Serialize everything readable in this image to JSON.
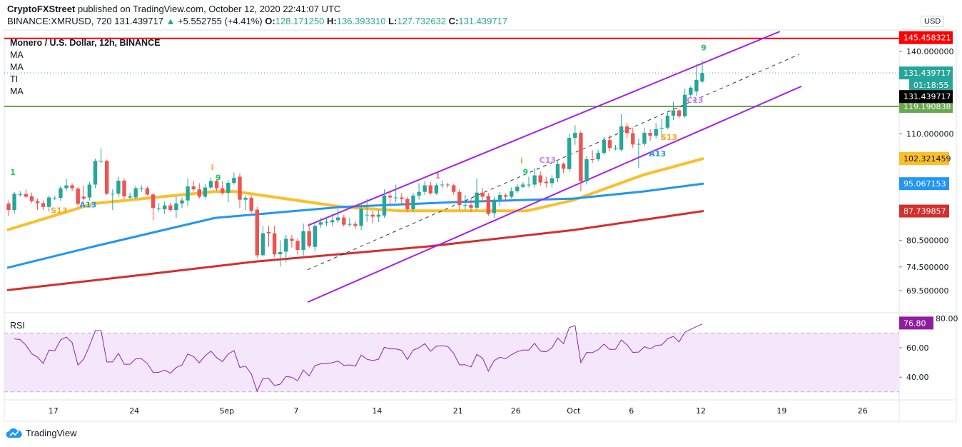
{
  "header": {
    "publisher": "CryptoFXStreet",
    "published_text": " published on TradingView.com, October 12, 2020 22:41:07 UTC",
    "symbol": "BINANCE:XMRUSD, 720",
    "last": "131.439717",
    "change": "+5.552755 (+4.41%)",
    "o_label": "O:",
    "o": "128.171250",
    "h_label": "H:",
    "h": "136.393310",
    "l_label": "L:",
    "l": "127.732632",
    "c_label": "C:",
    "c": "131.439717"
  },
  "legend": {
    "title": "Monero / U.S. Dollar, 12h, BINANCE",
    "indicators": [
      "MA",
      "MA",
      "TI",
      "MA"
    ],
    "rsi": "RSI"
  },
  "currency": "USD",
  "footer": {
    "brand": "TradingView"
  },
  "colors": {
    "up": "#26a69a",
    "down": "#ef5350",
    "ma_yellow": "#fbbf2c",
    "ma_blue": "#2196f3",
    "ma_red": "#d32f2f",
    "channel": "#a51ff0",
    "support": "#6aa84f",
    "resistance": "#ff0000",
    "rsi": "#8e24aa"
  },
  "chart_data": {
    "type": "candlestick",
    "interval": "12h",
    "scale": "log",
    "start": "2020-08-13T00:00",
    "candles_ohlc": [
      [
        89.7,
        90.5,
        86.5,
        88.0
      ],
      [
        88.0,
        92.8,
        87.0,
        92.3
      ],
      [
        92.2,
        93.0,
        91.5,
        92.2
      ],
      [
        92.2,
        93.5,
        91.2,
        91.5
      ],
      [
        91.6,
        92.6,
        89.8,
        90.3
      ],
      [
        90.3,
        91.0,
        88.0,
        89.8
      ],
      [
        89.8,
        90.5,
        88.0,
        88.8
      ],
      [
        88.8,
        91.8,
        87.6,
        91.3
      ],
      [
        91.2,
        91.8,
        90.6,
        91.2
      ],
      [
        91.2,
        94.5,
        90.4,
        93.8
      ],
      [
        93.8,
        96.4,
        93.0,
        94.6
      ],
      [
        94.6,
        95.2,
        93.0,
        93.8
      ],
      [
        93.7,
        94.2,
        89.0,
        89.6
      ],
      [
        91.5,
        94.5,
        90.5,
        91.0
      ],
      [
        91.3,
        95.5,
        90.5,
        94.8
      ],
      [
        94.8,
        102.3,
        93.8,
        101.6
      ],
      [
        101.6,
        105.5,
        101.0,
        101.6
      ],
      [
        101.6,
        102.0,
        92.0,
        92.3
      ],
      [
        92.3,
        93.5,
        88.0,
        92.3
      ],
      [
        92.3,
        97.0,
        91.5,
        95.9
      ],
      [
        95.9,
        96.5,
        91.0,
        91.6
      ],
      [
        91.3,
        92.6,
        90.8,
        91.6
      ],
      [
        91.3,
        94.5,
        90.8,
        93.8
      ],
      [
        93.8,
        94.6,
        92.8,
        93.8
      ],
      [
        93.8,
        94.3,
        91.8,
        92.1
      ],
      [
        92.1,
        92.5,
        85.4,
        88.5
      ],
      [
        88.5,
        89.8,
        87.6,
        88.5
      ],
      [
        88.2,
        90.2,
        87.0,
        89.2
      ],
      [
        89.2,
        89.9,
        87.6,
        88.0
      ],
      [
        88.0,
        91.5,
        86.0,
        89.7
      ],
      [
        89.7,
        91.3,
        88.6,
        90.5
      ],
      [
        90.5,
        96.5,
        89.0,
        94.3
      ],
      [
        94.3,
        95.8,
        93.0,
        93.5
      ],
      [
        93.5,
        95.2,
        91.0,
        91.5
      ],
      [
        91.5,
        95.0,
        91.0,
        94.0
      ],
      [
        94.0,
        96.8,
        93.5,
        95.8
      ],
      [
        95.8,
        96.3,
        93.0,
        93.8
      ],
      [
        93.8,
        95.7,
        92.0,
        92.5
      ],
      [
        92.5,
        96.0,
        90.0,
        95.3
      ],
      [
        95.3,
        98.2,
        94.8,
        96.7
      ],
      [
        97.0,
        98.0,
        88.5,
        90.7
      ],
      [
        90.7,
        91.8,
        88.0,
        91.2
      ],
      [
        91.2,
        91.8,
        87.3,
        87.8
      ],
      [
        88.1,
        88.8,
        76.5,
        77.1
      ],
      [
        77.1,
        84.0,
        76.8,
        82.2
      ],
      [
        82.5,
        84.0,
        79.0,
        82.2
      ],
      [
        82.2,
        84.0,
        76.7,
        77.3
      ],
      [
        77.3,
        80.5,
        74.6,
        77.8
      ],
      [
        77.9,
        81.8,
        75.5,
        80.9
      ],
      [
        80.9,
        81.8,
        78.8,
        80.4
      ],
      [
        80.4,
        81.0,
        77.2,
        78.3
      ],
      [
        78.3,
        84.6,
        77.0,
        82.7
      ],
      [
        82.7,
        84.6,
        78.8,
        79.2
      ],
      [
        79.0,
        85.0,
        78.0,
        84.0
      ],
      [
        84.3,
        86.0,
        83.6,
        84.9
      ],
      [
        84.8,
        86.3,
        84.0,
        85.0
      ],
      [
        84.9,
        87.0,
        83.9,
        85.4
      ],
      [
        85.4,
        88.2,
        84.8,
        86.1
      ],
      [
        86.1,
        86.8,
        83.8,
        84.3
      ],
      [
        84.3,
        86.0,
        83.7,
        84.5
      ],
      [
        84.5,
        85.2,
        83.3,
        84.0
      ],
      [
        84.0,
        89.5,
        83.0,
        88.3
      ],
      [
        86.8,
        91.0,
        85.0,
        86.8
      ],
      [
        86.8,
        87.8,
        84.6,
        86.3
      ],
      [
        86.3,
        88.0,
        85.0,
        86.8
      ],
      [
        86.6,
        93.5,
        86.0,
        91.8
      ],
      [
        91.8,
        93.0,
        89.0,
        91.3
      ],
      [
        91.3,
        94.8,
        90.0,
        91.3
      ],
      [
        91.3,
        92.5,
        89.5,
        90.9
      ],
      [
        90.9,
        91.5,
        87.5,
        88.2
      ],
      [
        88.2,
        92.5,
        87.6,
        91.8
      ],
      [
        91.8,
        95.2,
        90.8,
        92.8
      ],
      [
        92.8,
        95.8,
        92.0,
        94.6
      ],
      [
        94.6,
        95.5,
        92.0,
        92.4
      ],
      [
        92.4,
        95.2,
        92.0,
        94.6
      ],
      [
        94.6,
        96.0,
        93.8,
        94.8
      ],
      [
        94.8,
        95.3,
        94.0,
        94.6
      ],
      [
        94.6,
        95.0,
        92.0,
        92.8
      ],
      [
        92.8,
        93.5,
        88.0,
        89.3
      ],
      [
        89.3,
        92.0,
        88.0,
        89.3
      ],
      [
        89.3,
        91.0,
        87.5,
        88.6
      ],
      [
        88.6,
        96.5,
        88.0,
        92.6
      ],
      [
        92.6,
        93.8,
        90.0,
        91.5
      ],
      [
        91.7,
        92.5,
        86.5,
        87.0
      ],
      [
        87.2,
        91.5,
        86.0,
        90.7
      ],
      [
        90.7,
        92.8,
        89.0,
        92.0
      ],
      [
        91.9,
        92.4,
        90.2,
        91.5
      ],
      [
        91.5,
        94.0,
        91.0,
        93.0
      ],
      [
        93.0,
        95.0,
        92.5,
        94.2
      ],
      [
        94.2,
        95.5,
        93.8,
        94.8
      ],
      [
        94.8,
        97.0,
        94.0,
        94.8
      ],
      [
        94.8,
        99.5,
        94.0,
        97.4
      ],
      [
        97.4,
        98.5,
        94.5,
        95.4
      ],
      [
        95.6,
        97.0,
        94.0,
        95.2
      ],
      [
        95.2,
        97.5,
        94.0,
        96.6
      ],
      [
        96.6,
        101.5,
        95.5,
        100.7
      ],
      [
        100.7,
        101.2,
        98.0,
        99.3
      ],
      [
        99.2,
        110.0,
        98.5,
        108.7
      ],
      [
        108.7,
        112.8,
        106.5,
        110.3
      ],
      [
        110.3,
        111.0,
        93.0,
        95.7
      ],
      [
        95.7,
        103.0,
        94.8,
        102.1
      ],
      [
        102.1,
        104.8,
        101.0,
        102.0
      ],
      [
        102.1,
        105.0,
        101.5,
        104.0
      ],
      [
        104.0,
        109.0,
        103.5,
        108.0
      ],
      [
        108.0,
        109.5,
        104.5,
        105.5
      ],
      [
        105.6,
        106.5,
        104.8,
        105.6
      ],
      [
        105.0,
        116.5,
        104.5,
        112.4
      ],
      [
        112.4,
        113.5,
        108.5,
        110.2
      ],
      [
        110.2,
        112.0,
        105.5,
        106.6
      ],
      [
        106.8,
        108.5,
        99.5,
        106.8
      ],
      [
        106.8,
        112.0,
        106.0,
        110.3
      ],
      [
        110.3,
        111.5,
        107.8,
        109.4
      ],
      [
        109.4,
        113.5,
        108.5,
        111.5
      ],
      [
        111.9,
        115.0,
        108.0,
        111.9
      ],
      [
        112.0,
        117.0,
        111.5,
        116.0
      ],
      [
        116.0,
        120.8,
        114.5,
        117.8
      ],
      [
        117.8,
        118.3,
        115.0,
        115.8
      ],
      [
        115.8,
        125.5,
        115.3,
        123.3
      ],
      [
        123.3,
        126.5,
        122.5,
        125.9
      ],
      [
        124.5,
        134.8,
        123.0,
        128.8
      ],
      [
        128.17125,
        136.39331,
        127.732632,
        131.439717
      ]
    ],
    "moving_averages": [
      {
        "color": "#fbbf2c",
        "points": [
          [
            "2020-08-13",
            83.0
          ],
          [
            "2020-08-20T12:00",
            89.7
          ],
          [
            "2020-08-31",
            92.9
          ],
          [
            "2020-09-01T18:00",
            92.9
          ],
          [
            "2020-09-11",
            88.8
          ],
          [
            "2020-09-16",
            87.8
          ],
          [
            "2020-09-27",
            87.8
          ],
          [
            "2020-10-01",
            90.6
          ],
          [
            "2020-10-07",
            97.5
          ],
          [
            "2020-10-12T06:00",
            102.321459
          ]
        ]
      },
      {
        "color": "#2196f3",
        "points": [
          [
            "2020-08-13",
            74.3
          ],
          [
            "2020-08-20T12:00",
            79.1
          ],
          [
            "2020-08-31",
            86.0
          ],
          [
            "2020-09-11",
            88.8
          ],
          [
            "2020-09-21",
            90.1
          ],
          [
            "2020-10-01",
            91.0
          ],
          [
            "2020-10-07",
            92.9
          ],
          [
            "2020-10-12T06:00",
            95.067153
          ]
        ]
      },
      {
        "color": "#d32f2f",
        "points": [
          [
            "2020-08-13",
            69.6
          ],
          [
            "2020-08-24T17:00",
            72.8
          ],
          [
            "2020-09-03T14:00",
            75.7
          ],
          [
            "2020-09-18T10:00",
            79.1
          ],
          [
            "2020-10-01",
            83.0
          ],
          [
            "2020-10-12T06:00",
            87.739857
          ]
        ]
      }
    ],
    "trendlines": [
      {
        "kind": "channel-upper",
        "color": "#a51ff0",
        "from": [
          "2020-09-08",
          84.1
        ],
        "to": [
          "2020-10-18T20:00",
          148.4
        ]
      },
      {
        "kind": "channel-lower",
        "color": "#a51ff0",
        "from": [
          "2020-09-08",
          67.2
        ],
        "to": [
          "2020-10-20T17:00",
          126.4
        ]
      },
      {
        "kind": "channel-mid-dashed",
        "color": "#333333",
        "from": [
          "2020-09-08",
          73.9
        ],
        "to": [
          "2020-10-20T12:00",
          138.8
        ]
      }
    ],
    "horizontal_lines": [
      {
        "price": 145.458321,
        "label": "145.458321",
        "color": "#ff0000"
      },
      {
        "price": 119.190838,
        "label": "119.190838",
        "color": "#6aa84f"
      }
    ],
    "price_labels": [
      {
        "price": 131.439717,
        "label": "131.439717",
        "bg": "#26a69a",
        "fg": "#ffffff"
      },
      {
        "price": 102.321459,
        "label": "102.321459",
        "bg": "#fbbf2c",
        "fg": "#131722"
      },
      {
        "price": 95.067153,
        "label": "95.067153",
        "bg": "#2196f3",
        "fg": "#ffffff"
      },
      {
        "price": 87.739857,
        "label": "87.739857",
        "bg": "#d32f2f",
        "fg": "#ffffff"
      }
    ],
    "countdown": "01:18:55",
    "crosshair_label": "131.439717",
    "y_ticks": [
      140,
      110,
      80.5,
      74.5,
      69.5
    ],
    "y_tick_labels": [
      "140.000000",
      "110.000000",
      "80.500000",
      "74.500000",
      "69.500000"
    ],
    "x_ticks": [
      {
        "label": "17",
        "date": "2020-08-17"
      },
      {
        "label": "24",
        "date": "2020-08-24"
      },
      {
        "label": "Sep",
        "date": "2020-09-01"
      },
      {
        "label": "7",
        "date": "2020-09-07"
      },
      {
        "label": "14",
        "date": "2020-09-14"
      },
      {
        "label": "21",
        "date": "2020-09-21"
      },
      {
        "label": "26",
        "date": "2020-09-26"
      },
      {
        "label": "Oct",
        "date": "2020-10-01"
      },
      {
        "label": "6",
        "date": "2020-10-06"
      },
      {
        "label": "12",
        "date": "2020-10-12"
      },
      {
        "label": "19",
        "date": "2020-10-19"
      },
      {
        "label": "26",
        "date": "2020-10-26"
      }
    ],
    "annotations": [
      {
        "text": "1",
        "color": "#22c55e",
        "date": "2020-08-13T12:00",
        "price": 97.5
      },
      {
        "text": "S13",
        "color": "#f5a623",
        "date": "2020-08-17T12:00",
        "price": 87.2
      },
      {
        "text": "A13",
        "color": "#2196f3",
        "date": "2020-08-20",
        "price": 88.7
      },
      {
        "text": "i",
        "color": "#f5a623",
        "date": "2020-08-30T18:00",
        "price": 97.5
      },
      {
        "text": "9",
        "color": "#22c55e",
        "date": "2020-08-31T06:00",
        "price": 96.0
      },
      {
        "text": "1",
        "color": "#f08080",
        "date": "2020-09-19T06:00",
        "price": 96.5
      },
      {
        "text": "i",
        "color": "#f5a623",
        "date": "2020-09-26T12:00",
        "price": 99.5
      },
      {
        "text": "9",
        "color": "#22c55e",
        "date": "2020-09-26T20:00",
        "price": 97.6
      },
      {
        "text": "C13",
        "color": "#c77dff",
        "date": "2020-09-28T18:00",
        "price": 101.0
      },
      {
        "text": "A13",
        "color": "#2196f3",
        "date": "2020-10-08T06:00",
        "price": 103.0
      },
      {
        "text": "S13",
        "color": "#f5a623",
        "date": "2020-10-09T06:00",
        "price": 108.0
      },
      {
        "text": "C13",
        "color": "#c77dff",
        "date": "2020-10-11T12:00",
        "price": 120.5
      },
      {
        "text": "9",
        "color": "#22c55e",
        "date": "2020-10-12T06:00",
        "price": 140.5
      }
    ],
    "rsi": {
      "period": 14,
      "upper_band": 70,
      "lower_band": 30,
      "value_label": "76.80",
      "label_color": "#8e1e9e",
      "y_ticks": [
        60,
        40
      ],
      "y_tick_labels": [
        "60.00",
        "40.00"
      ],
      "top_tick_label": "80.00"
    }
  }
}
